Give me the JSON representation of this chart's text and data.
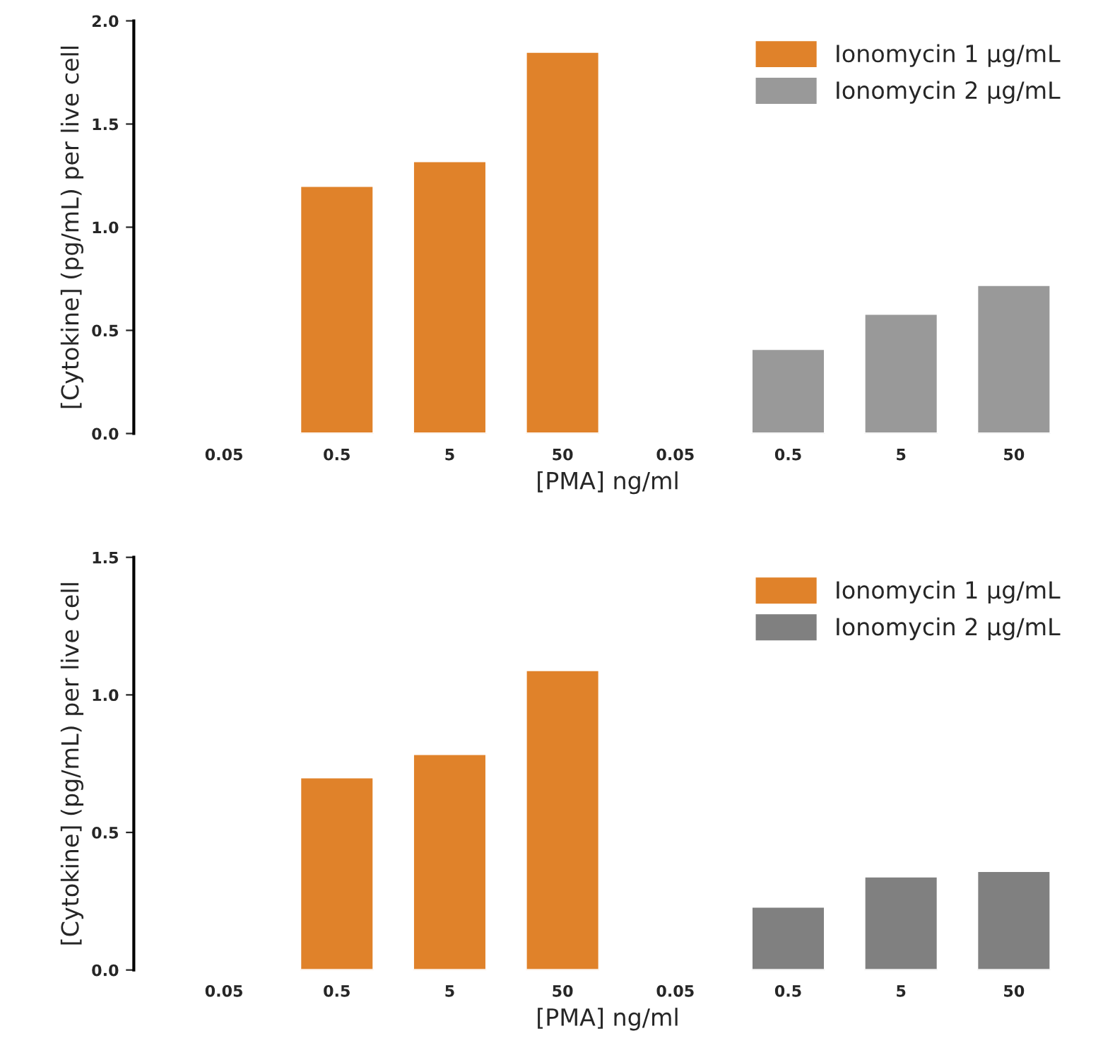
{
  "chart_data": [
    {
      "type": "bar",
      "xlabel": "[PMA] ng/ml",
      "ylabel": "[Cytokine] (pg/mL) per live cell",
      "categories": [
        "0.05",
        "0.5",
        "5",
        "50",
        "0.05",
        "0.5",
        "5",
        "50"
      ],
      "series": [
        {
          "name": "Ionomycin 1 µg/mL",
          "color": "#e0822a",
          "values": [
            null,
            1.2,
            1.32,
            1.85,
            null,
            null,
            null,
            null
          ]
        },
        {
          "name": "Ionomycin 2 µg/mL",
          "color": "#999999",
          "values": [
            null,
            null,
            null,
            null,
            null,
            0.41,
            0.58,
            0.72
          ]
        }
      ],
      "ylim": [
        0,
        2.0
      ],
      "yticks": [
        {
          "value": 0,
          "label": "0.0"
        },
        {
          "value": 0.5,
          "label": "0.5"
        },
        {
          "value": 1,
          "label": "1.0"
        },
        {
          "value": 1.5,
          "label": "1.5"
        },
        {
          "value": 2,
          "label": "2.0"
        }
      ],
      "legend": "top right",
      "grid": false
    },
    {
      "type": "bar",
      "xlabel": "[PMA] ng/ml",
      "ylabel": "[Cytokine] (pg/mL) per live cell",
      "categories": [
        "0.05",
        "0.5",
        "5",
        "50",
        "0.05",
        "0.5",
        "5",
        "50"
      ],
      "series": [
        {
          "name": "Ionomycin 1 µg/mL",
          "color": "#e0822a",
          "values": [
            null,
            0.7,
            0.785,
            1.09,
            null,
            null,
            null,
            null
          ]
        },
        {
          "name": "Ionomycin 2 µg/mL",
          "color": "#808080",
          "values": [
            null,
            null,
            null,
            null,
            null,
            0.23,
            0.34,
            0.36
          ]
        }
      ],
      "ylim": [
        0,
        1.5
      ],
      "yticks": [
        {
          "value": 0,
          "label": "0.0"
        },
        {
          "value": 0.5,
          "label": "0.5"
        },
        {
          "value": 1,
          "label": "1.0"
        },
        {
          "value": 1.5,
          "label": "1.5"
        }
      ],
      "legend": "top right",
      "grid": false
    }
  ]
}
